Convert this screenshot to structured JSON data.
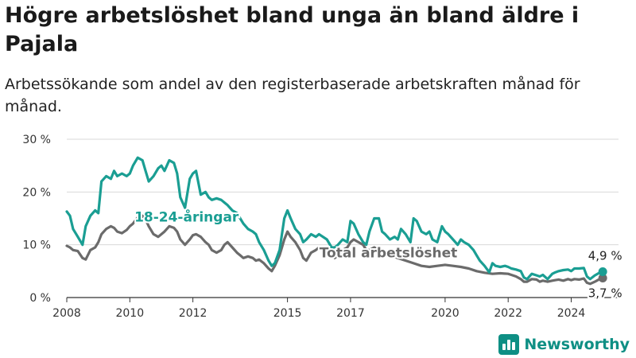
{
  "title": "Högre arbetslöshet bland unga än bland äldre i Pajala",
  "subtitle": "Arbetssökande som andel av den registerbaserade arbetskraften månad för månad.",
  "brand": {
    "name": "Newsworthy"
  },
  "colors": {
    "youth": "#1a9e93",
    "total": "#6b6b6b",
    "grid": "#d9d9d9",
    "axis": "#333333"
  },
  "chart_data": {
    "type": "line",
    "title": "Högre arbetslöshet bland unga än bland äldre i Pajala",
    "subtitle": "Arbetssökande som andel av den registerbaserade arbetskraften månad för månad.",
    "xlabel": "",
    "ylabel": "",
    "ylim": [
      0,
      30
    ],
    "yticks": [
      0,
      10,
      20,
      30
    ],
    "ytick_labels": [
      "0 %",
      "10 %",
      "20 %",
      "30 %"
    ],
    "xlim": [
      2008,
      2025.5
    ],
    "xticks": [
      2008,
      2010,
      2012,
      2015,
      2017,
      2020,
      2022,
      2024
    ],
    "xtick_labels": [
      "2008",
      "2010",
      "2012",
      "2015",
      "2017",
      "2020",
      "2022",
      "2024"
    ],
    "grid": true,
    "series": [
      {
        "name": "18-24-åringar",
        "label_at": [
          2011.8,
          14.4
        ],
        "end_label": "4,9 %",
        "points": [
          [
            2008.0,
            16.3
          ],
          [
            2008.1,
            15.5
          ],
          [
            2008.2,
            13.0
          ],
          [
            2008.35,
            11.5
          ],
          [
            2008.5,
            10.0
          ],
          [
            2008.6,
            13.5
          ],
          [
            2008.75,
            15.5
          ],
          [
            2008.9,
            16.5
          ],
          [
            2009.0,
            16.0
          ],
          [
            2009.1,
            22.0
          ],
          [
            2009.25,
            23.0
          ],
          [
            2009.4,
            22.5
          ],
          [
            2009.5,
            24.0
          ],
          [
            2009.6,
            23.0
          ],
          [
            2009.75,
            23.5
          ],
          [
            2009.9,
            23.0
          ],
          [
            2010.0,
            23.5
          ],
          [
            2010.1,
            25.0
          ],
          [
            2010.25,
            26.5
          ],
          [
            2010.4,
            26.0
          ],
          [
            2010.5,
            24.0
          ],
          [
            2010.6,
            22.0
          ],
          [
            2010.75,
            23.0
          ],
          [
            2010.9,
            24.5
          ],
          [
            2011.0,
            25.0
          ],
          [
            2011.1,
            24.0
          ],
          [
            2011.25,
            26.0
          ],
          [
            2011.4,
            25.5
          ],
          [
            2011.5,
            23.5
          ],
          [
            2011.6,
            19.0
          ],
          [
            2011.75,
            17.0
          ],
          [
            2011.9,
            22.5
          ],
          [
            2012.0,
            23.5
          ],
          [
            2012.1,
            24.0
          ],
          [
            2012.25,
            19.5
          ],
          [
            2012.4,
            20.0
          ],
          [
            2012.5,
            19.0
          ],
          [
            2012.6,
            18.5
          ],
          [
            2012.75,
            18.8
          ],
          [
            2012.9,
            18.5
          ],
          [
            2013.0,
            18.0
          ],
          [
            2013.1,
            17.5
          ],
          [
            2013.25,
            16.5
          ],
          [
            2013.4,
            16.0
          ],
          [
            2013.5,
            15.0
          ],
          [
            2013.6,
            14.0
          ],
          [
            2013.75,
            13.0
          ],
          [
            2013.9,
            12.5
          ],
          [
            2014.0,
            12.0
          ],
          [
            2014.1,
            10.5
          ],
          [
            2014.25,
            9.0
          ],
          [
            2014.4,
            7.0
          ],
          [
            2014.5,
            6.0
          ],
          [
            2014.6,
            6.5
          ],
          [
            2014.75,
            9.0
          ],
          [
            2014.9,
            15.0
          ],
          [
            2015.0,
            16.5
          ],
          [
            2015.1,
            15.0
          ],
          [
            2015.25,
            13.0
          ],
          [
            2015.4,
            12.0
          ],
          [
            2015.5,
            10.5
          ],
          [
            2015.6,
            11.0
          ],
          [
            2015.75,
            12.0
          ],
          [
            2015.9,
            11.5
          ],
          [
            2016.0,
            12.0
          ],
          [
            2016.25,
            11.0
          ],
          [
            2016.4,
            9.5
          ],
          [
            2016.5,
            9.5
          ],
          [
            2016.6,
            10.0
          ],
          [
            2016.75,
            11.0
          ],
          [
            2016.9,
            10.5
          ],
          [
            2017.0,
            14.5
          ],
          [
            2017.1,
            14.0
          ],
          [
            2017.25,
            12.0
          ],
          [
            2017.4,
            10.5
          ],
          [
            2017.5,
            10.0
          ],
          [
            2017.6,
            12.5
          ],
          [
            2017.75,
            15.0
          ],
          [
            2017.9,
            15.0
          ],
          [
            2018.0,
            12.5
          ],
          [
            2018.1,
            12.0
          ],
          [
            2018.25,
            11.0
          ],
          [
            2018.4,
            11.5
          ],
          [
            2018.5,
            11.0
          ],
          [
            2018.6,
            13.0
          ],
          [
            2018.75,
            12.0
          ],
          [
            2018.9,
            10.5
          ],
          [
            2019.0,
            15.0
          ],
          [
            2019.1,
            14.5
          ],
          [
            2019.25,
            12.5
          ],
          [
            2019.4,
            12.0
          ],
          [
            2019.5,
            12.5
          ],
          [
            2019.6,
            11.0
          ],
          [
            2019.75,
            10.5
          ],
          [
            2019.9,
            13.5
          ],
          [
            2020.0,
            12.5
          ],
          [
            2020.1,
            12.0
          ],
          [
            2020.25,
            11.0
          ],
          [
            2020.4,
            10.0
          ],
          [
            2020.5,
            11.0
          ],
          [
            2020.6,
            10.5
          ],
          [
            2020.75,
            10.0
          ],
          [
            2020.9,
            9.0
          ],
          [
            2021.0,
            8.0
          ],
          [
            2021.1,
            7.0
          ],
          [
            2021.25,
            6.0
          ],
          [
            2021.4,
            4.8
          ],
          [
            2021.5,
            6.5
          ],
          [
            2021.6,
            6.0
          ],
          [
            2021.75,
            5.8
          ],
          [
            2021.9,
            6.0
          ],
          [
            2022.0,
            5.8
          ],
          [
            2022.1,
            5.5
          ],
          [
            2022.25,
            5.3
          ],
          [
            2022.4,
            5.0
          ],
          [
            2022.5,
            3.8
          ],
          [
            2022.6,
            3.5
          ],
          [
            2022.75,
            4.5
          ],
          [
            2022.9,
            4.2
          ],
          [
            2023.0,
            4.0
          ],
          [
            2023.1,
            4.3
          ],
          [
            2023.25,
            3.5
          ],
          [
            2023.4,
            4.5
          ],
          [
            2023.5,
            4.8
          ],
          [
            2023.6,
            5.0
          ],
          [
            2023.75,
            5.2
          ],
          [
            2023.9,
            5.3
          ],
          [
            2024.0,
            5.0
          ],
          [
            2024.1,
            5.5
          ],
          [
            2024.25,
            5.5
          ],
          [
            2024.4,
            5.6
          ],
          [
            2024.5,
            4.0
          ],
          [
            2024.6,
            3.5
          ],
          [
            2024.75,
            4.2
          ],
          [
            2024.9,
            4.7
          ],
          [
            2025.0,
            4.9
          ]
        ]
      },
      {
        "name": "Total arbetslöshet",
        "label_at": [
          2018.2,
          7.6
        ],
        "end_label": "3,7 %",
        "points": [
          [
            2008.0,
            9.8
          ],
          [
            2008.1,
            9.5
          ],
          [
            2008.2,
            9.0
          ],
          [
            2008.35,
            8.8
          ],
          [
            2008.5,
            7.5
          ],
          [
            2008.6,
            7.2
          ],
          [
            2008.75,
            9.0
          ],
          [
            2008.9,
            9.5
          ],
          [
            2009.0,
            10.5
          ],
          [
            2009.1,
            12.0
          ],
          [
            2009.25,
            13.0
          ],
          [
            2009.4,
            13.5
          ],
          [
            2009.5,
            13.2
          ],
          [
            2009.6,
            12.5
          ],
          [
            2009.75,
            12.2
          ],
          [
            2009.9,
            12.8
          ],
          [
            2010.0,
            13.5
          ],
          [
            2010.1,
            14.0
          ],
          [
            2010.25,
            15.2
          ],
          [
            2010.4,
            15.5
          ],
          [
            2010.5,
            14.8
          ],
          [
            2010.6,
            13.5
          ],
          [
            2010.75,
            12.0
          ],
          [
            2010.9,
            11.5
          ],
          [
            2011.0,
            12.0
          ],
          [
            2011.1,
            12.5
          ],
          [
            2011.25,
            13.5
          ],
          [
            2011.4,
            13.2
          ],
          [
            2011.5,
            12.5
          ],
          [
            2011.6,
            11.0
          ],
          [
            2011.75,
            10.0
          ],
          [
            2011.9,
            11.0
          ],
          [
            2012.0,
            11.8
          ],
          [
            2012.1,
            12.0
          ],
          [
            2012.25,
            11.5
          ],
          [
            2012.4,
            10.5
          ],
          [
            2012.5,
            10.0
          ],
          [
            2012.6,
            9.0
          ],
          [
            2012.75,
            8.5
          ],
          [
            2012.9,
            9.0
          ],
          [
            2013.0,
            10.0
          ],
          [
            2013.1,
            10.5
          ],
          [
            2013.25,
            9.5
          ],
          [
            2013.4,
            8.5
          ],
          [
            2013.5,
            8.0
          ],
          [
            2013.6,
            7.5
          ],
          [
            2013.75,
            7.8
          ],
          [
            2013.9,
            7.5
          ],
          [
            2014.0,
            7.0
          ],
          [
            2014.1,
            7.2
          ],
          [
            2014.25,
            6.5
          ],
          [
            2014.4,
            5.5
          ],
          [
            2014.5,
            5.0
          ],
          [
            2014.6,
            6.0
          ],
          [
            2014.75,
            8.0
          ],
          [
            2014.9,
            11.0
          ],
          [
            2015.0,
            12.5
          ],
          [
            2015.1,
            11.5
          ],
          [
            2015.25,
            10.5
          ],
          [
            2015.4,
            9.0
          ],
          [
            2015.5,
            7.5
          ],
          [
            2015.6,
            7.0
          ],
          [
            2015.75,
            8.5
          ],
          [
            2015.9,
            9.0
          ],
          [
            2016.0,
            9.5
          ],
          [
            2016.25,
            9.0
          ],
          [
            2016.4,
            8.5
          ],
          [
            2016.5,
            7.5
          ],
          [
            2016.6,
            8.0
          ],
          [
            2016.75,
            9.0
          ],
          [
            2016.9,
            9.5
          ],
          [
            2017.0,
            10.5
          ],
          [
            2017.1,
            11.0
          ],
          [
            2017.25,
            10.5
          ],
          [
            2017.4,
            10.0
          ],
          [
            2017.5,
            9.0
          ],
          [
            2017.6,
            9.0
          ],
          [
            2017.75,
            9.5
          ],
          [
            2017.9,
            9.0
          ],
          [
            2018.0,
            8.5
          ],
          [
            2018.25,
            8.0
          ],
          [
            2018.5,
            7.5
          ],
          [
            2018.75,
            7.0
          ],
          [
            2019.0,
            6.5
          ],
          [
            2019.25,
            6.0
          ],
          [
            2019.5,
            5.8
          ],
          [
            2019.75,
            6.0
          ],
          [
            2020.0,
            6.2
          ],
          [
            2020.25,
            6.0
          ],
          [
            2020.5,
            5.8
          ],
          [
            2020.75,
            5.5
          ],
          [
            2021.0,
            5.0
          ],
          [
            2021.25,
            4.7
          ],
          [
            2021.5,
            4.5
          ],
          [
            2021.75,
            4.6
          ],
          [
            2022.0,
            4.5
          ],
          [
            2022.1,
            4.3
          ],
          [
            2022.25,
            4.0
          ],
          [
            2022.4,
            3.5
          ],
          [
            2022.5,
            3.0
          ],
          [
            2022.6,
            3.0
          ],
          [
            2022.75,
            3.5
          ],
          [
            2022.9,
            3.4
          ],
          [
            2023.0,
            3.0
          ],
          [
            2023.1,
            3.2
          ],
          [
            2023.25,
            3.0
          ],
          [
            2023.4,
            3.2
          ],
          [
            2023.5,
            3.3
          ],
          [
            2023.6,
            3.4
          ],
          [
            2023.75,
            3.2
          ],
          [
            2023.9,
            3.5
          ],
          [
            2024.0,
            3.3
          ],
          [
            2024.1,
            3.5
          ],
          [
            2024.25,
            3.4
          ],
          [
            2024.4,
            3.6
          ],
          [
            2024.5,
            2.8
          ],
          [
            2024.6,
            2.6
          ],
          [
            2024.75,
            3.0
          ],
          [
            2024.9,
            3.5
          ],
          [
            2025.0,
            3.7
          ]
        ]
      }
    ]
  }
}
